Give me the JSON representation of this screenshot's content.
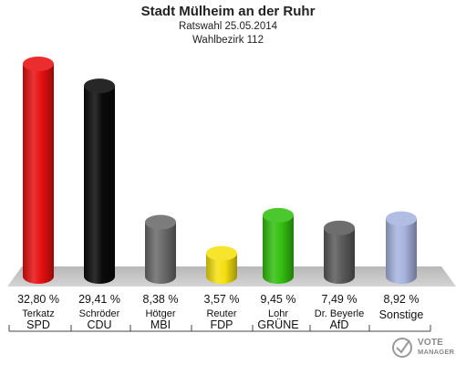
{
  "title": "Stadt Mülheim an der Ruhr",
  "subtitle": "Ratswahl 25.05.2014",
  "subtitle2": "Wahlbezirk 112",
  "logo": {
    "line1": "VOTE",
    "line2": "MANAGER"
  },
  "chart_data": {
    "type": "bar",
    "categories": [
      "SPD",
      "CDU",
      "MBI",
      "FDP",
      "GRÜNE",
      "AfD",
      "Sonstige"
    ],
    "candidates": [
      "Terkatz",
      "Schröder",
      "Hötger",
      "Reuter",
      "Lohr",
      "Dr. Beyerle",
      ""
    ],
    "values": [
      32.8,
      29.41,
      8.38,
      3.57,
      9.45,
      7.49,
      8.92
    ],
    "value_labels": [
      "32,80 %",
      "29,41 %",
      "8,38 %",
      "3,57 %",
      "9,45 %",
      "7,49 %",
      "8,92 %"
    ],
    "colors": [
      "#e81010",
      "#0a0a0a",
      "#6a6a6a",
      "#f5e010",
      "#33c010",
      "#5a5a5a",
      "#a8b4e0"
    ]
  }
}
